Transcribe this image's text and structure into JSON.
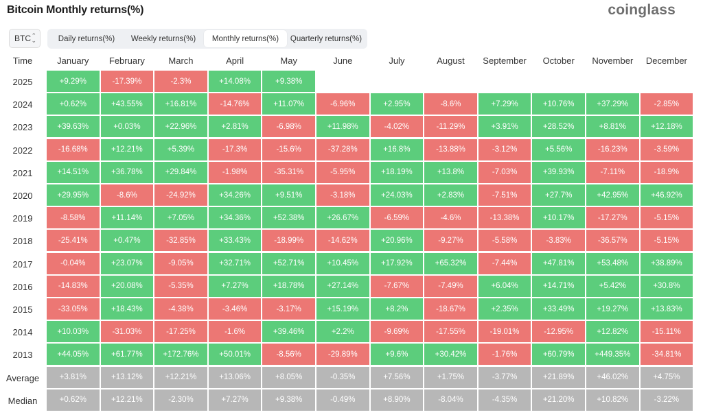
{
  "header": {
    "title": "Bitcoin Monthly returns(%)",
    "logo": "coinglass"
  },
  "toolbar": {
    "asset": "BTC",
    "tabs": [
      {
        "label": "Daily returns(%)",
        "active": false
      },
      {
        "label": "Weekly returns(%)",
        "active": false
      },
      {
        "label": "Monthly returns(%)",
        "active": true
      },
      {
        "label": "Quarterly returns(%)",
        "active": false
      }
    ]
  },
  "table": {
    "time_label": "Time",
    "months": [
      "January",
      "February",
      "March",
      "April",
      "May",
      "June",
      "July",
      "August",
      "September",
      "October",
      "November",
      "December"
    ],
    "rows": [
      {
        "label": "2025",
        "values": [
          "+9.29%",
          "-17.39%",
          "-2.3%",
          "+14.08%",
          "+9.38%",
          "",
          "",
          "",
          "",
          "",
          "",
          ""
        ]
      },
      {
        "label": "2024",
        "values": [
          "+0.62%",
          "+43.55%",
          "+16.81%",
          "-14.76%",
          "+11.07%",
          "-6.96%",
          "+2.95%",
          "-8.6%",
          "+7.29%",
          "+10.76%",
          "+37.29%",
          "-2.85%"
        ]
      },
      {
        "label": "2023",
        "values": [
          "+39.63%",
          "+0.03%",
          "+22.96%",
          "+2.81%",
          "-6.98%",
          "+11.98%",
          "-4.02%",
          "-11.29%",
          "+3.91%",
          "+28.52%",
          "+8.81%",
          "+12.18%"
        ]
      },
      {
        "label": "2022",
        "values": [
          "-16.68%",
          "+12.21%",
          "+5.39%",
          "-17.3%",
          "-15.6%",
          "-37.28%",
          "+16.8%",
          "-13.88%",
          "-3.12%",
          "+5.56%",
          "-16.23%",
          "-3.59%"
        ]
      },
      {
        "label": "2021",
        "values": [
          "+14.51%",
          "+36.78%",
          "+29.84%",
          "-1.98%",
          "-35.31%",
          "-5.95%",
          "+18.19%",
          "+13.8%",
          "-7.03%",
          "+39.93%",
          "-7.11%",
          "-18.9%"
        ]
      },
      {
        "label": "2020",
        "values": [
          "+29.95%",
          "-8.6%",
          "-24.92%",
          "+34.26%",
          "+9.51%",
          "-3.18%",
          "+24.03%",
          "+2.83%",
          "-7.51%",
          "+27.7%",
          "+42.95%",
          "+46.92%"
        ]
      },
      {
        "label": "2019",
        "values": [
          "-8.58%",
          "+11.14%",
          "+7.05%",
          "+34.36%",
          "+52.38%",
          "+26.67%",
          "-6.59%",
          "-4.6%",
          "-13.38%",
          "+10.17%",
          "-17.27%",
          "-5.15%"
        ]
      },
      {
        "label": "2018",
        "values": [
          "-25.41%",
          "+0.47%",
          "-32.85%",
          "+33.43%",
          "-18.99%",
          "-14.62%",
          "+20.96%",
          "-9.27%",
          "-5.58%",
          "-3.83%",
          "-36.57%",
          "-5.15%"
        ]
      },
      {
        "label": "2017",
        "values": [
          "-0.04%",
          "+23.07%",
          "-9.05%",
          "+32.71%",
          "+52.71%",
          "+10.45%",
          "+17.92%",
          "+65.32%",
          "-7.44%",
          "+47.81%",
          "+53.48%",
          "+38.89%"
        ]
      },
      {
        "label": "2016",
        "values": [
          "-14.83%",
          "+20.08%",
          "-5.35%",
          "+7.27%",
          "+18.78%",
          "+27.14%",
          "-7.67%",
          "-7.49%",
          "+6.04%",
          "+14.71%",
          "+5.42%",
          "+30.8%"
        ]
      },
      {
        "label": "2015",
        "values": [
          "-33.05%",
          "+18.43%",
          "-4.38%",
          "-3.46%",
          "-3.17%",
          "+15.19%",
          "+8.2%",
          "-18.67%",
          "+2.35%",
          "+33.49%",
          "+19.27%",
          "+13.83%"
        ]
      },
      {
        "label": "2014",
        "values": [
          "+10.03%",
          "-31.03%",
          "-17.25%",
          "-1.6%",
          "+39.46%",
          "+2.2%",
          "-9.69%",
          "-17.55%",
          "-19.01%",
          "-12.95%",
          "+12.82%",
          "-15.11%"
        ]
      },
      {
        "label": "2013",
        "values": [
          "+44.05%",
          "+61.77%",
          "+172.76%",
          "+50.01%",
          "-8.56%",
          "-29.89%",
          "+9.6%",
          "+30.42%",
          "-1.76%",
          "+60.79%",
          "+449.35%",
          "-34.81%"
        ]
      },
      {
        "label": "Average",
        "summary": true,
        "values": [
          "+3.81%",
          "+13.12%",
          "+12.21%",
          "+13.06%",
          "+8.05%",
          "-0.35%",
          "+7.56%",
          "+1.75%",
          "-3.77%",
          "+21.89%",
          "+46.02%",
          "+4.75%"
        ]
      },
      {
        "label": "Median",
        "summary": true,
        "values": [
          "+0.62%",
          "+12.21%",
          "-2.30%",
          "+7.27%",
          "+9.38%",
          "-0.49%",
          "+8.90%",
          "-8.04%",
          "-4.35%",
          "+21.20%",
          "+10.82%",
          "-3.22%"
        ]
      }
    ]
  },
  "colors": {
    "positive": "#5ccd7c",
    "negative": "#ec7774",
    "summary": "#b7b7b7"
  }
}
